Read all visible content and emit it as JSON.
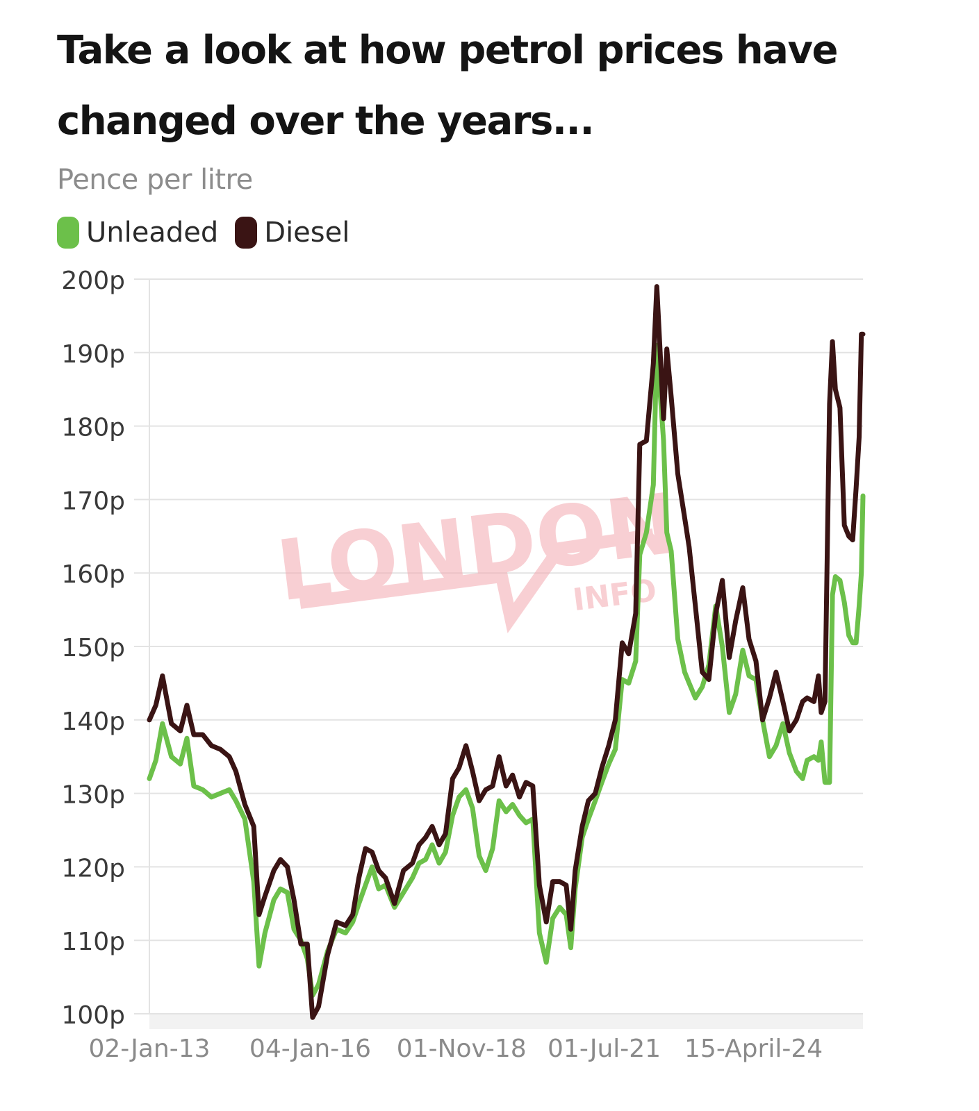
{
  "title": "Take a look at how petrol prices have changed over the years...",
  "subtitle": "Pence per litre",
  "watermark": {
    "main": "LONDON",
    "sub": "INFO",
    "color": "#f4a9b0"
  },
  "chart_data": {
    "type": "line",
    "title": "Take a look at how petrol prices have changed over the years...",
    "ylabel": "Pence per litre",
    "ylim": [
      100,
      200
    ],
    "yticks": [
      200,
      190,
      180,
      170,
      160,
      150,
      140,
      130,
      120,
      110,
      100
    ],
    "ytick_labels": [
      "200p",
      "190p",
      "180p",
      "170p",
      "160p",
      "150p",
      "140p",
      "130p",
      "120p",
      "110p",
      "100p"
    ],
    "x_range": [
      "2013-01-02",
      "2026-05-01"
    ],
    "xticks": [
      {
        "date": "2013-01-02",
        "label": "02-Jan-13"
      },
      {
        "date": "2016-01-04",
        "label": "04-Jan-16"
      },
      {
        "date": "2018-11-01",
        "label": "01-Nov-18"
      },
      {
        "date": "2021-07-01",
        "label": "01-Jul-21"
      },
      {
        "date": "2024-04-15",
        "label": "15-April-24"
      }
    ],
    "grid": true,
    "legend_position": "top-left",
    "series": [
      {
        "name": "Unleaded",
        "color": "#6cc04a",
        "points": [
          [
            "2013-01-02",
            132.0
          ],
          [
            "2013-02-15",
            134.5
          ],
          [
            "2013-04-01",
            139.5
          ],
          [
            "2013-06-01",
            135.0
          ],
          [
            "2013-08-01",
            134.0
          ],
          [
            "2013-09-15",
            137.5
          ],
          [
            "2013-11-01",
            131.0
          ],
          [
            "2014-01-01",
            130.5
          ],
          [
            "2014-03-01",
            129.5
          ],
          [
            "2014-05-01",
            130.0
          ],
          [
            "2014-07-01",
            130.5
          ],
          [
            "2014-08-15",
            129.0
          ],
          [
            "2014-10-15",
            126.5
          ],
          [
            "2014-12-15",
            118.0
          ],
          [
            "2015-01-20",
            106.5
          ],
          [
            "2015-03-01",
            111.0
          ],
          [
            "2015-05-01",
            115.5
          ],
          [
            "2015-06-15",
            117.0
          ],
          [
            "2015-08-01",
            116.5
          ],
          [
            "2015-09-15",
            111.5
          ],
          [
            "2015-11-01",
            110.0
          ],
          [
            "2015-12-15",
            107.5
          ],
          [
            "2016-01-20",
            102.5
          ],
          [
            "2016-03-01",
            104.0
          ],
          [
            "2016-05-01",
            108.5
          ],
          [
            "2016-07-01",
            111.5
          ],
          [
            "2016-09-01",
            111.0
          ],
          [
            "2016-10-20",
            112.5
          ],
          [
            "2016-12-01",
            115.0
          ],
          [
            "2017-01-15",
            117.5
          ],
          [
            "2017-03-01",
            120.0
          ],
          [
            "2017-04-15",
            117.0
          ],
          [
            "2017-06-01",
            117.5
          ],
          [
            "2017-08-01",
            114.5
          ],
          [
            "2017-10-01",
            116.5
          ],
          [
            "2017-12-01",
            118.5
          ],
          [
            "2018-01-15",
            120.5
          ],
          [
            "2018-03-01",
            121.0
          ],
          [
            "2018-04-15",
            123.0
          ],
          [
            "2018-06-01",
            120.5
          ],
          [
            "2018-07-15",
            122.0
          ],
          [
            "2018-09-01",
            127.0
          ],
          [
            "2018-10-15",
            129.5
          ],
          [
            "2018-12-01",
            130.5
          ],
          [
            "2019-01-15",
            128.0
          ],
          [
            "2019-03-01",
            121.5
          ],
          [
            "2019-04-15",
            119.5
          ],
          [
            "2019-06-01",
            122.5
          ],
          [
            "2019-07-15",
            129.0
          ],
          [
            "2019-09-01",
            127.5
          ],
          [
            "2019-10-15",
            128.5
          ],
          [
            "2019-12-01",
            127.0
          ],
          [
            "2020-01-15",
            126.0
          ],
          [
            "2020-03-01",
            126.5
          ],
          [
            "2020-04-15",
            111.0
          ],
          [
            "2020-06-01",
            107.0
          ],
          [
            "2020-07-15",
            113.0
          ],
          [
            "2020-09-01",
            114.5
          ],
          [
            "2020-10-15",
            113.5
          ],
          [
            "2020-11-15",
            109.0
          ],
          [
            "2020-12-15",
            117.0
          ],
          [
            "2021-02-01",
            124.0
          ],
          [
            "2021-03-15",
            126.5
          ],
          [
            "2021-05-01",
            129.0
          ],
          [
            "2021-06-15",
            131.5
          ],
          [
            "2021-08-01",
            134.0
          ],
          [
            "2021-09-15",
            136.0
          ],
          [
            "2021-11-01",
            145.5
          ],
          [
            "2021-12-15",
            145.0
          ],
          [
            "2022-02-01",
            148.0
          ],
          [
            "2022-03-01",
            162.5
          ],
          [
            "2022-04-15",
            165.5
          ],
          [
            "2022-06-01",
            172.0
          ],
          [
            "2022-06-25",
            191.0
          ],
          [
            "2022-08-10",
            178.0
          ],
          [
            "2022-09-01",
            165.5
          ],
          [
            "2022-10-01",
            163.0
          ],
          [
            "2022-11-15",
            151.0
          ],
          [
            "2023-01-01",
            146.5
          ],
          [
            "2023-02-01",
            145.0
          ],
          [
            "2023-03-15",
            143.0
          ],
          [
            "2023-05-01",
            144.5
          ],
          [
            "2023-06-15",
            147.5
          ],
          [
            "2023-08-01",
            155.5
          ],
          [
            "2023-09-15",
            150.0
          ],
          [
            "2023-11-01",
            141.0
          ],
          [
            "2023-12-15",
            143.5
          ],
          [
            "2024-02-01",
            149.5
          ],
          [
            "2024-03-15",
            146.0
          ],
          [
            "2024-05-01",
            145.5
          ],
          [
            "2024-06-15",
            140.0
          ],
          [
            "2024-08-01",
            135.0
          ],
          [
            "2024-09-15",
            136.5
          ],
          [
            "2024-11-01",
            139.5
          ],
          [
            "2024-12-15",
            135.5
          ],
          [
            "2025-02-01",
            133.0
          ],
          [
            "2025-03-15",
            132.0
          ],
          [
            "2025-04-15",
            134.5
          ],
          [
            "2025-06-01",
            135.0
          ],
          [
            "2025-07-01",
            134.5
          ],
          [
            "2025-07-20",
            137.0
          ],
          [
            "2025-08-15",
            131.5
          ],
          [
            "2025-09-15",
            131.5
          ],
          [
            "2025-10-05",
            157.0
          ],
          [
            "2025-10-25",
            159.5
          ],
          [
            "2025-11-25",
            159.0
          ],
          [
            "2025-12-25",
            156.0
          ],
          [
            "2026-01-25",
            151.5
          ],
          [
            "2026-02-20",
            150.5
          ],
          [
            "2026-03-15",
            150.5
          ],
          [
            "2026-04-05",
            155.5
          ],
          [
            "2026-04-20",
            160.0
          ],
          [
            "2026-05-01",
            170.5
          ]
        ]
      },
      {
        "name": "Diesel",
        "color": "#3a1414",
        "points": [
          [
            "2013-01-02",
            140.0
          ],
          [
            "2013-02-15",
            142.0
          ],
          [
            "2013-04-01",
            146.0
          ],
          [
            "2013-06-01",
            139.5
          ],
          [
            "2013-08-01",
            138.5
          ],
          [
            "2013-09-15",
            142.0
          ],
          [
            "2013-11-01",
            138.0
          ],
          [
            "2014-01-01",
            138.0
          ],
          [
            "2014-03-01",
            136.5
          ],
          [
            "2014-05-01",
            136.0
          ],
          [
            "2014-07-01",
            135.0
          ],
          [
            "2014-08-15",
            133.0
          ],
          [
            "2014-10-15",
            128.5
          ],
          [
            "2014-12-15",
            125.5
          ],
          [
            "2015-01-20",
            113.5
          ],
          [
            "2015-03-01",
            116.0
          ],
          [
            "2015-05-01",
            119.5
          ],
          [
            "2015-06-15",
            121.0
          ],
          [
            "2015-08-01",
            120.0
          ],
          [
            "2015-09-15",
            115.5
          ],
          [
            "2015-11-01",
            109.5
          ],
          [
            "2015-12-15",
            109.5
          ],
          [
            "2016-01-20",
            99.5
          ],
          [
            "2016-03-01",
            101.0
          ],
          [
            "2016-05-01",
            108.0
          ],
          [
            "2016-07-01",
            112.5
          ],
          [
            "2016-09-01",
            112.0
          ],
          [
            "2016-10-20",
            113.5
          ],
          [
            "2016-12-01",
            118.5
          ],
          [
            "2017-01-15",
            122.5
          ],
          [
            "2017-03-01",
            122.0
          ],
          [
            "2017-04-15",
            119.5
          ],
          [
            "2017-06-01",
            118.5
          ],
          [
            "2017-08-01",
            115.0
          ],
          [
            "2017-10-01",
            119.5
          ],
          [
            "2017-12-01",
            120.5
          ],
          [
            "2018-01-15",
            123.0
          ],
          [
            "2018-03-01",
            124.0
          ],
          [
            "2018-04-15",
            125.5
          ],
          [
            "2018-06-01",
            123.0
          ],
          [
            "2018-07-15",
            124.5
          ],
          [
            "2018-09-01",
            132.0
          ],
          [
            "2018-10-15",
            133.5
          ],
          [
            "2018-12-01",
            136.5
          ],
          [
            "2019-01-15",
            133.0
          ],
          [
            "2019-03-01",
            129.0
          ],
          [
            "2019-04-15",
            130.5
          ],
          [
            "2019-06-01",
            131.0
          ],
          [
            "2019-07-15",
            135.0
          ],
          [
            "2019-09-01",
            131.0
          ],
          [
            "2019-10-15",
            132.5
          ],
          [
            "2019-12-01",
            129.5
          ],
          [
            "2020-01-15",
            131.5
          ],
          [
            "2020-03-01",
            131.0
          ],
          [
            "2020-04-15",
            117.5
          ],
          [
            "2020-06-01",
            112.5
          ],
          [
            "2020-07-15",
            118.0
          ],
          [
            "2020-09-01",
            118.0
          ],
          [
            "2020-10-15",
            117.5
          ],
          [
            "2020-11-15",
            111.5
          ],
          [
            "2020-12-15",
            119.5
          ],
          [
            "2021-02-01",
            125.5
          ],
          [
            "2021-03-15",
            129.0
          ],
          [
            "2021-05-01",
            130.0
          ],
          [
            "2021-06-15",
            133.5
          ],
          [
            "2021-08-01",
            136.5
          ],
          [
            "2021-09-15",
            140.0
          ],
          [
            "2021-11-01",
            150.5
          ],
          [
            "2021-12-15",
            149.0
          ],
          [
            "2022-02-01",
            154.5
          ],
          [
            "2022-03-01",
            177.5
          ],
          [
            "2022-04-15",
            178.0
          ],
          [
            "2022-06-01",
            188.5
          ],
          [
            "2022-06-25",
            199.0
          ],
          [
            "2022-08-10",
            181.0
          ],
          [
            "2022-09-01",
            190.5
          ],
          [
            "2022-10-01",
            184.0
          ],
          [
            "2022-11-15",
            173.5
          ],
          [
            "2023-01-01",
            167.5
          ],
          [
            "2023-02-01",
            163.5
          ],
          [
            "2023-03-15",
            155.5
          ],
          [
            "2023-05-01",
            146.5
          ],
          [
            "2023-06-15",
            145.5
          ],
          [
            "2023-08-01",
            154.5
          ],
          [
            "2023-09-15",
            159.0
          ],
          [
            "2023-11-01",
            148.5
          ],
          [
            "2023-12-15",
            153.5
          ],
          [
            "2024-02-01",
            158.0
          ],
          [
            "2024-03-15",
            151.0
          ],
          [
            "2024-05-01",
            148.0
          ],
          [
            "2024-06-15",
            140.0
          ],
          [
            "2024-08-01",
            143.0
          ],
          [
            "2024-09-15",
            146.5
          ],
          [
            "2024-11-01",
            142.5
          ],
          [
            "2024-12-15",
            138.5
          ],
          [
            "2025-02-01",
            140.0
          ],
          [
            "2025-03-15",
            142.5
          ],
          [
            "2025-04-15",
            143.0
          ],
          [
            "2025-06-01",
            142.5
          ],
          [
            "2025-07-01",
            146.0
          ],
          [
            "2025-07-20",
            141.0
          ],
          [
            "2025-08-15",
            142.5
          ],
          [
            "2025-09-15",
            183.0
          ],
          [
            "2025-10-05",
            191.5
          ],
          [
            "2025-10-25",
            185.0
          ],
          [
            "2025-11-25",
            182.5
          ],
          [
            "2025-12-25",
            166.5
          ],
          [
            "2026-01-25",
            165.0
          ],
          [
            "2026-02-20",
            164.5
          ],
          [
            "2026-03-15",
            171.5
          ],
          [
            "2026-04-05",
            178.5
          ],
          [
            "2026-04-20",
            192.5
          ],
          [
            "2026-05-01",
            192.5
          ]
        ]
      }
    ]
  }
}
